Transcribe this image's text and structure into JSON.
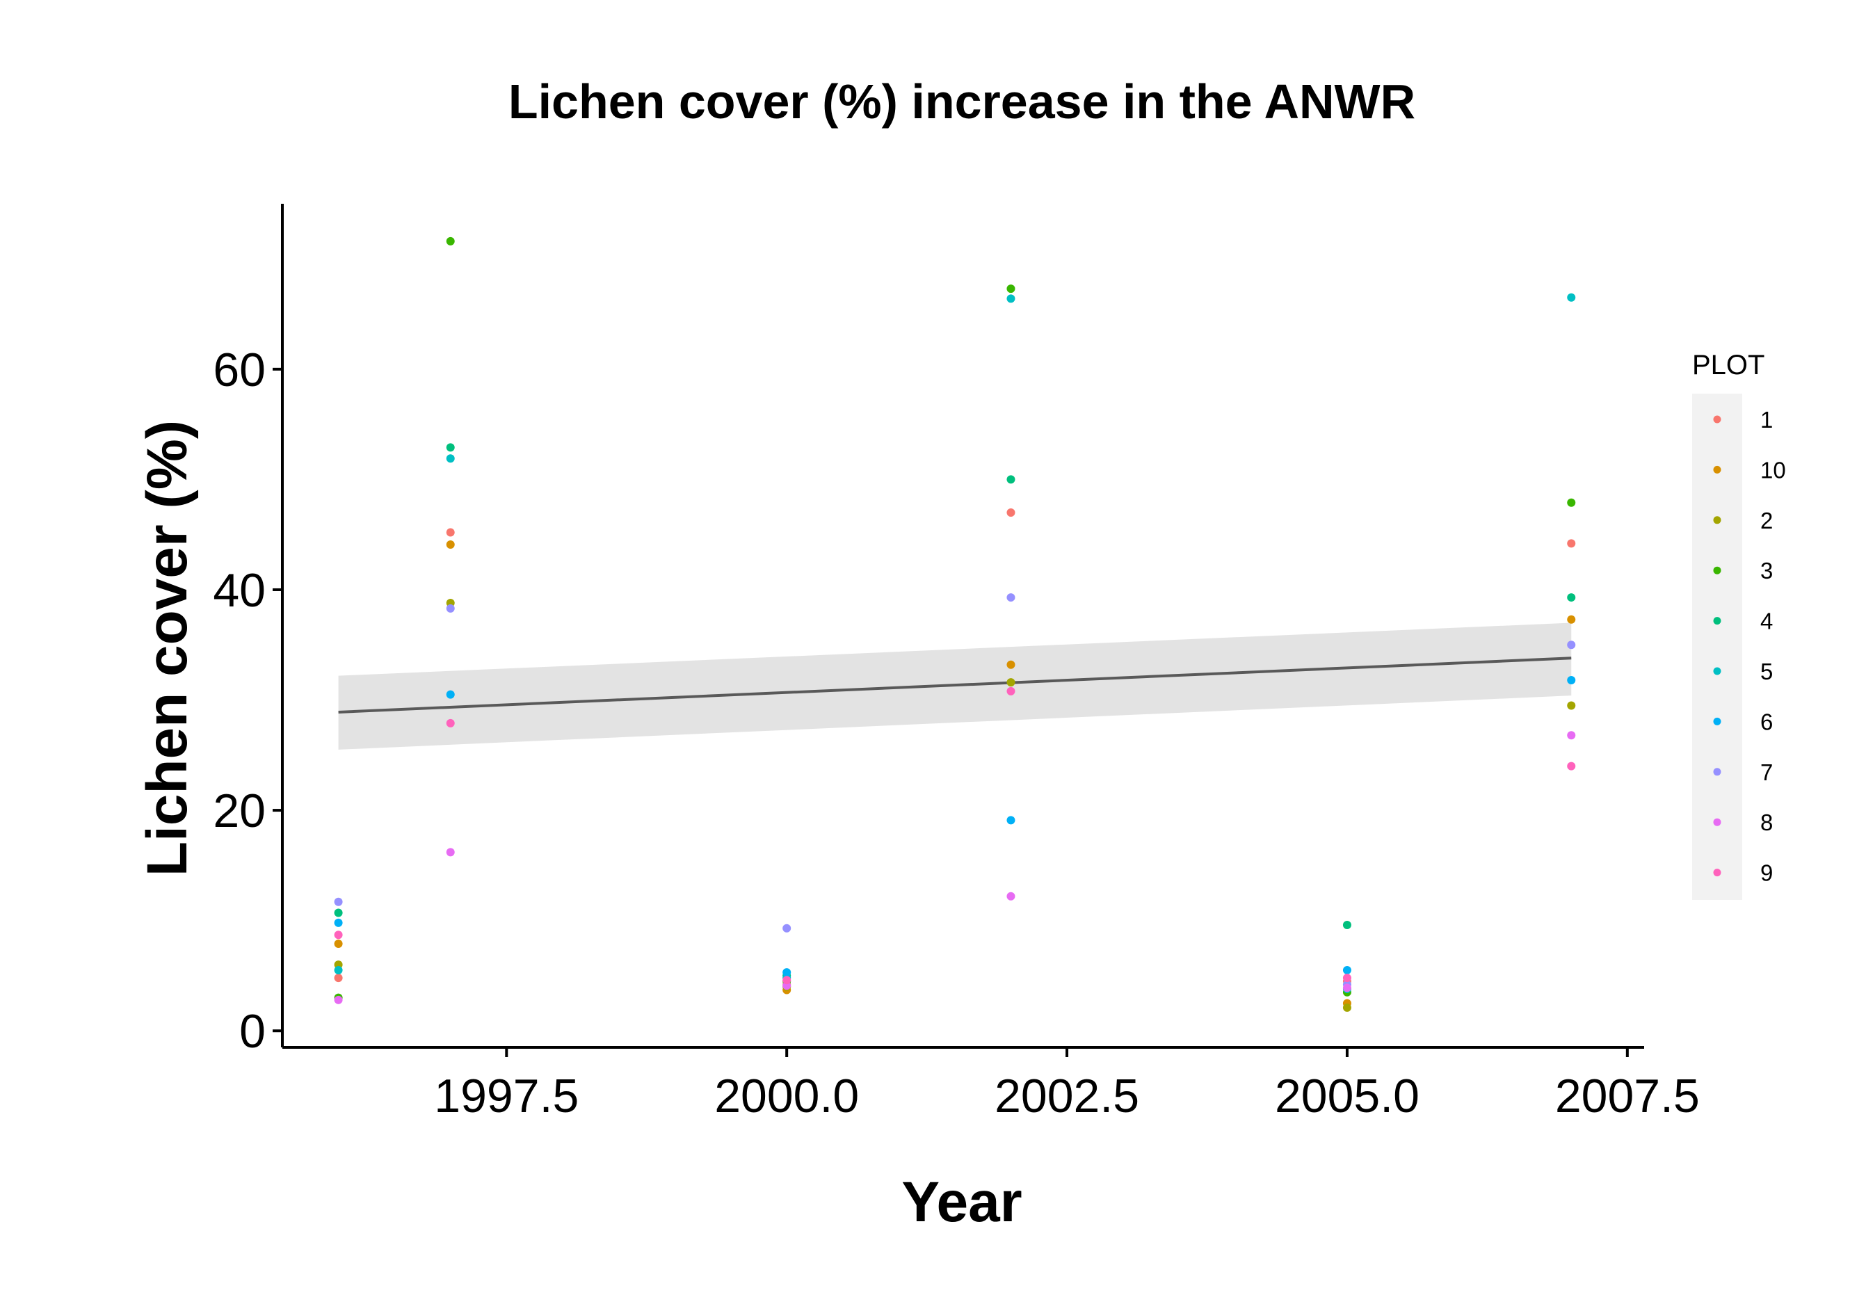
{
  "chart_data": {
    "type": "scatter",
    "title": "Lichen cover (%) increase in the ANWR",
    "xlabel": "Year",
    "ylabel": "Lichen cover (%)",
    "xlim": [
      1995.5,
      2007.65
    ],
    "ylim": [
      -1.5,
      75
    ],
    "x_ticks": [
      1997.5,
      2000.0,
      2002.5,
      2005.0,
      2007.5
    ],
    "x_tick_labels": [
      "1997.5",
      "2000.0",
      "2002.5",
      "2005.0",
      "2007.5"
    ],
    "y_ticks": [
      0,
      20,
      40,
      60
    ],
    "y_tick_labels": [
      "0",
      "20",
      "40",
      "60"
    ],
    "grid": false,
    "legend": {
      "title": "PLOT",
      "position": "right"
    },
    "series": [
      {
        "name": "1",
        "color": "#F8766D",
        "points": [
          [
            1996,
            4.8
          ],
          [
            1997,
            45.2
          ],
          [
            2000,
            4.2
          ],
          [
            2002,
            47.0
          ],
          [
            2005,
            4.5
          ],
          [
            2007,
            44.2
          ]
        ]
      },
      {
        "name": "10",
        "color": "#D89000",
        "points": [
          [
            1996,
            7.9
          ],
          [
            1997,
            44.1
          ],
          [
            2000,
            3.7
          ],
          [
            2002,
            33.2
          ],
          [
            2005,
            2.5
          ],
          [
            2007,
            37.3
          ]
        ]
      },
      {
        "name": "2",
        "color": "#A3A500",
        "points": [
          [
            1996,
            6.0
          ],
          [
            1997,
            38.8
          ],
          [
            2000,
            4.0
          ],
          [
            2002,
            31.6
          ],
          [
            2005,
            2.1
          ],
          [
            2007,
            29.5
          ]
        ]
      },
      {
        "name": "3",
        "color": "#39B600",
        "points": [
          [
            1996,
            3.0
          ],
          [
            1997,
            71.6
          ],
          [
            2000,
            4.5
          ],
          [
            2002,
            67.3
          ],
          [
            2005,
            3.5
          ],
          [
            2007,
            47.9
          ]
        ]
      },
      {
        "name": "4",
        "color": "#00BF7D",
        "points": [
          [
            1996,
            10.7
          ],
          [
            1997,
            52.9
          ],
          [
            2000,
            5.0
          ],
          [
            2002,
            50.0
          ],
          [
            2005,
            9.6
          ],
          [
            2007,
            39.3
          ]
        ]
      },
      {
        "name": "5",
        "color": "#00BFC4",
        "points": [
          [
            1996,
            5.5
          ],
          [
            1997,
            51.9
          ],
          [
            2000,
            4.8
          ],
          [
            2002,
            66.4
          ],
          [
            2005,
            3.8
          ],
          [
            2007,
            66.5
          ]
        ]
      },
      {
        "name": "6",
        "color": "#00B0F6",
        "points": [
          [
            1996,
            9.8
          ],
          [
            1997,
            30.5
          ],
          [
            2000,
            5.3
          ],
          [
            2002,
            19.1
          ],
          [
            2005,
            5.5
          ],
          [
            2007,
            31.8
          ]
        ]
      },
      {
        "name": "7",
        "color": "#9590FF",
        "points": [
          [
            1996,
            11.7
          ],
          [
            1997,
            38.3
          ],
          [
            2000,
            9.3
          ],
          [
            2002,
            39.3
          ],
          [
            2005,
            4.2
          ],
          [
            2007,
            35.0
          ]
        ]
      },
      {
        "name": "8",
        "color": "#E76BF3",
        "points": [
          [
            1996,
            2.8
          ],
          [
            1997,
            16.2
          ],
          [
            2000,
            4.1
          ],
          [
            2002,
            12.2
          ],
          [
            2005,
            3.9
          ],
          [
            2007,
            26.8
          ]
        ]
      },
      {
        "name": "9",
        "color": "#FF62BC",
        "points": [
          [
            1996,
            8.7
          ],
          [
            1997,
            27.9
          ],
          [
            2000,
            4.6
          ],
          [
            2002,
            30.8
          ],
          [
            2005,
            4.8
          ],
          [
            2007,
            24.0
          ]
        ]
      }
    ],
    "trend_line": {
      "color": "#595959",
      "x": [
        1996,
        2007
      ],
      "y": [
        28.9,
        33.8
      ],
      "ci_color": "#e3e3e3",
      "ci_lower": [
        25.5,
        30.4
      ],
      "ci_upper": [
        32.2,
        37.0
      ]
    }
  }
}
